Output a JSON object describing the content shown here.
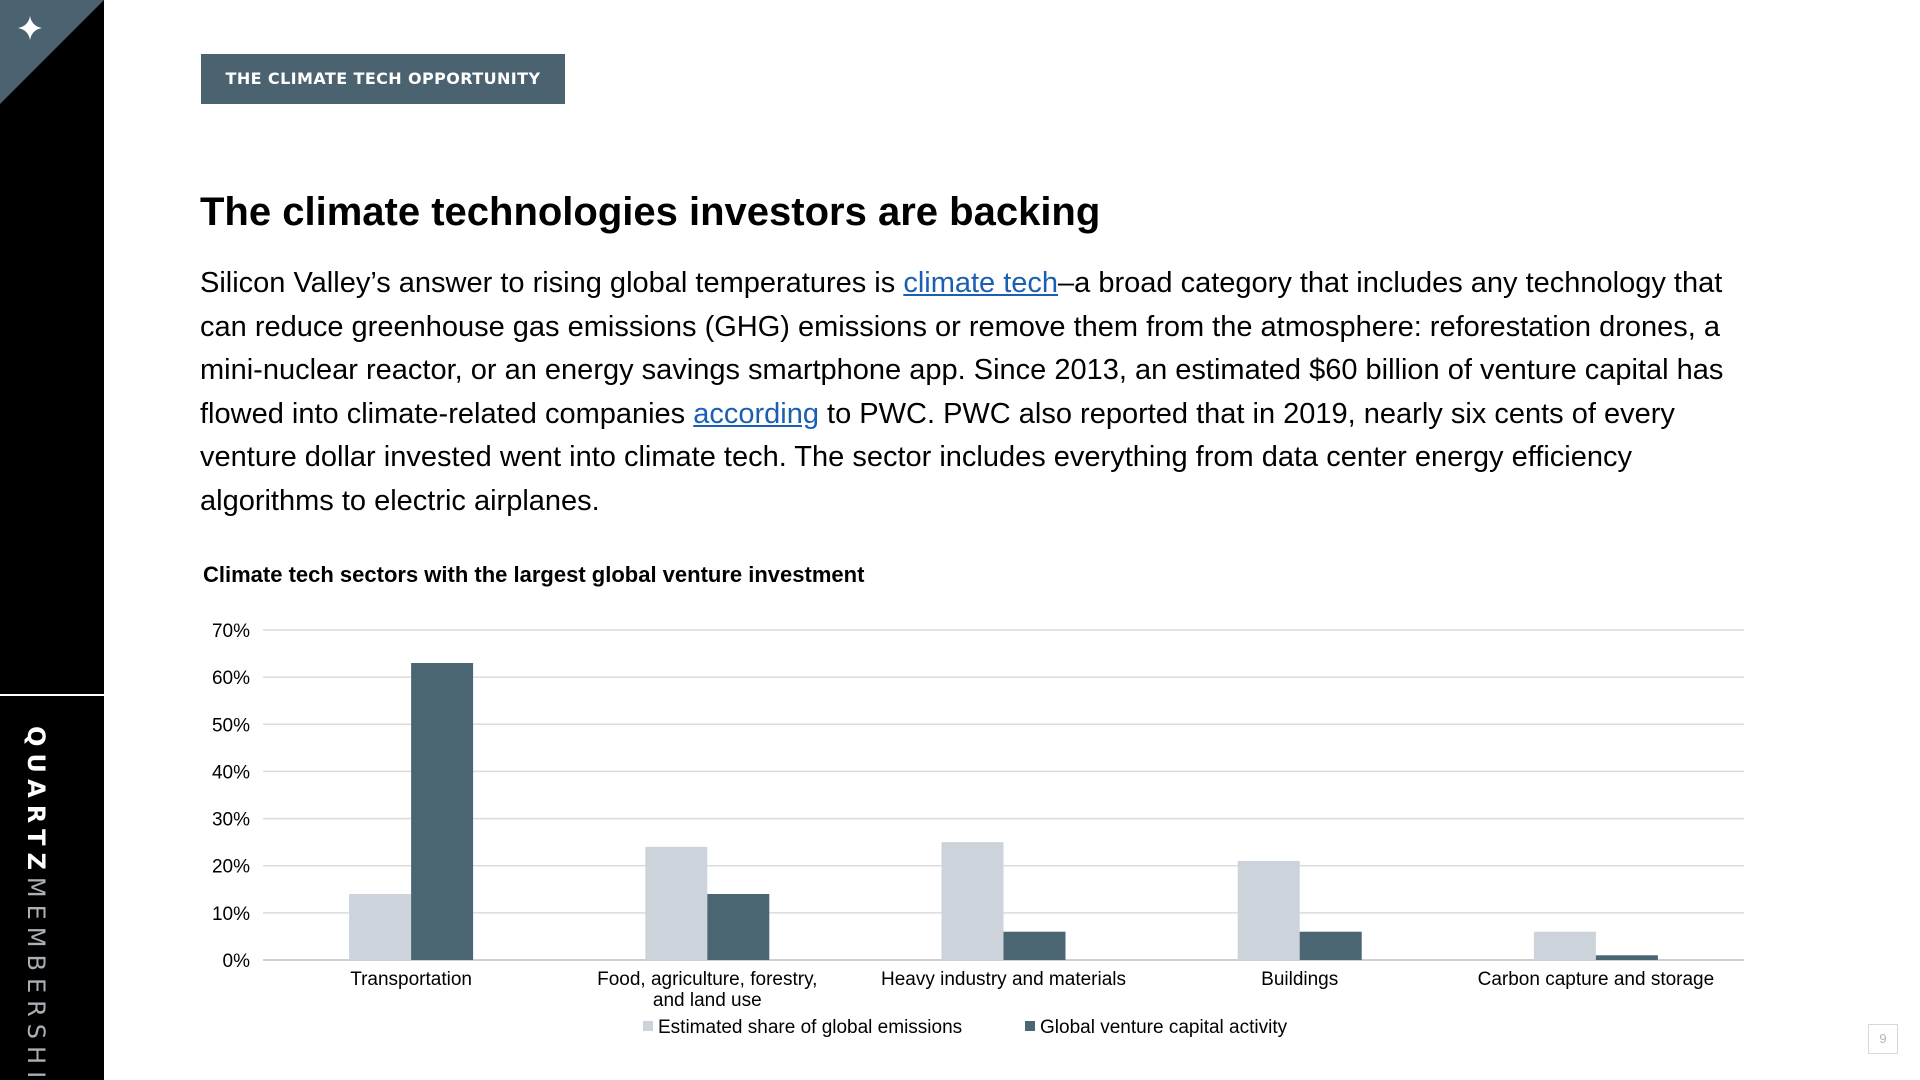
{
  "brand": {
    "name_bold": "QUARTZ",
    "name_light": "MEMBERSHIP",
    "corner_icon": "sparkle-icon"
  },
  "section_tag": "THE CLIMATE TECH OPPORTUNITY",
  "page_title": "The climate technologies investors are backing",
  "intro": {
    "part1": "Silicon Valley’s answer to rising global temperatures is ",
    "link1": "climate tech",
    "part2": "–a broad category that includes any technology that can reduce greenhouse gas emissions (GHG) emissions or remove them from the atmosphere: reforestation drones, a mini-nuclear reactor, or an energy savings smartphone app. Since 2013, an estimated $60 billion of venture capital has flowed into climate-related companies ",
    "link2": "according",
    "part3": " to PWC. PWC also reported that in 2019, nearly six cents of every venture dollar invested went into climate tech. The sector includes everything from data center energy efficiency algorithms to electric airplanes."
  },
  "page_number": "9",
  "colors": {
    "tag_bg": "#4b6270",
    "series_light": "#ccd3da",
    "series_dark": "#4b6673",
    "link": "#1a5fb4"
  },
  "chart_data": {
    "type": "bar",
    "title": "Climate tech sectors with the largest global venture investment",
    "categories": [
      "Transportation",
      "Food, agriculture, forestry, and land use",
      "Heavy industry and materials",
      "Buildings",
      "Carbon capture and storage"
    ],
    "series": [
      {
        "name": "Estimated share of global emissions",
        "values": [
          14,
          24,
          25,
          21,
          6
        ],
        "color": "#ccd3da"
      },
      {
        "name": "Global venture capital activity",
        "values": [
          63,
          14,
          6,
          6,
          1
        ],
        "color": "#4b6673"
      }
    ],
    "y_ticks": [
      "0%",
      "10%",
      "20%",
      "30%",
      "40%",
      "50%",
      "60%",
      "70%"
    ],
    "ylim": [
      0,
      70
    ],
    "unit": "%",
    "grid": true,
    "legend_position": "bottom"
  }
}
